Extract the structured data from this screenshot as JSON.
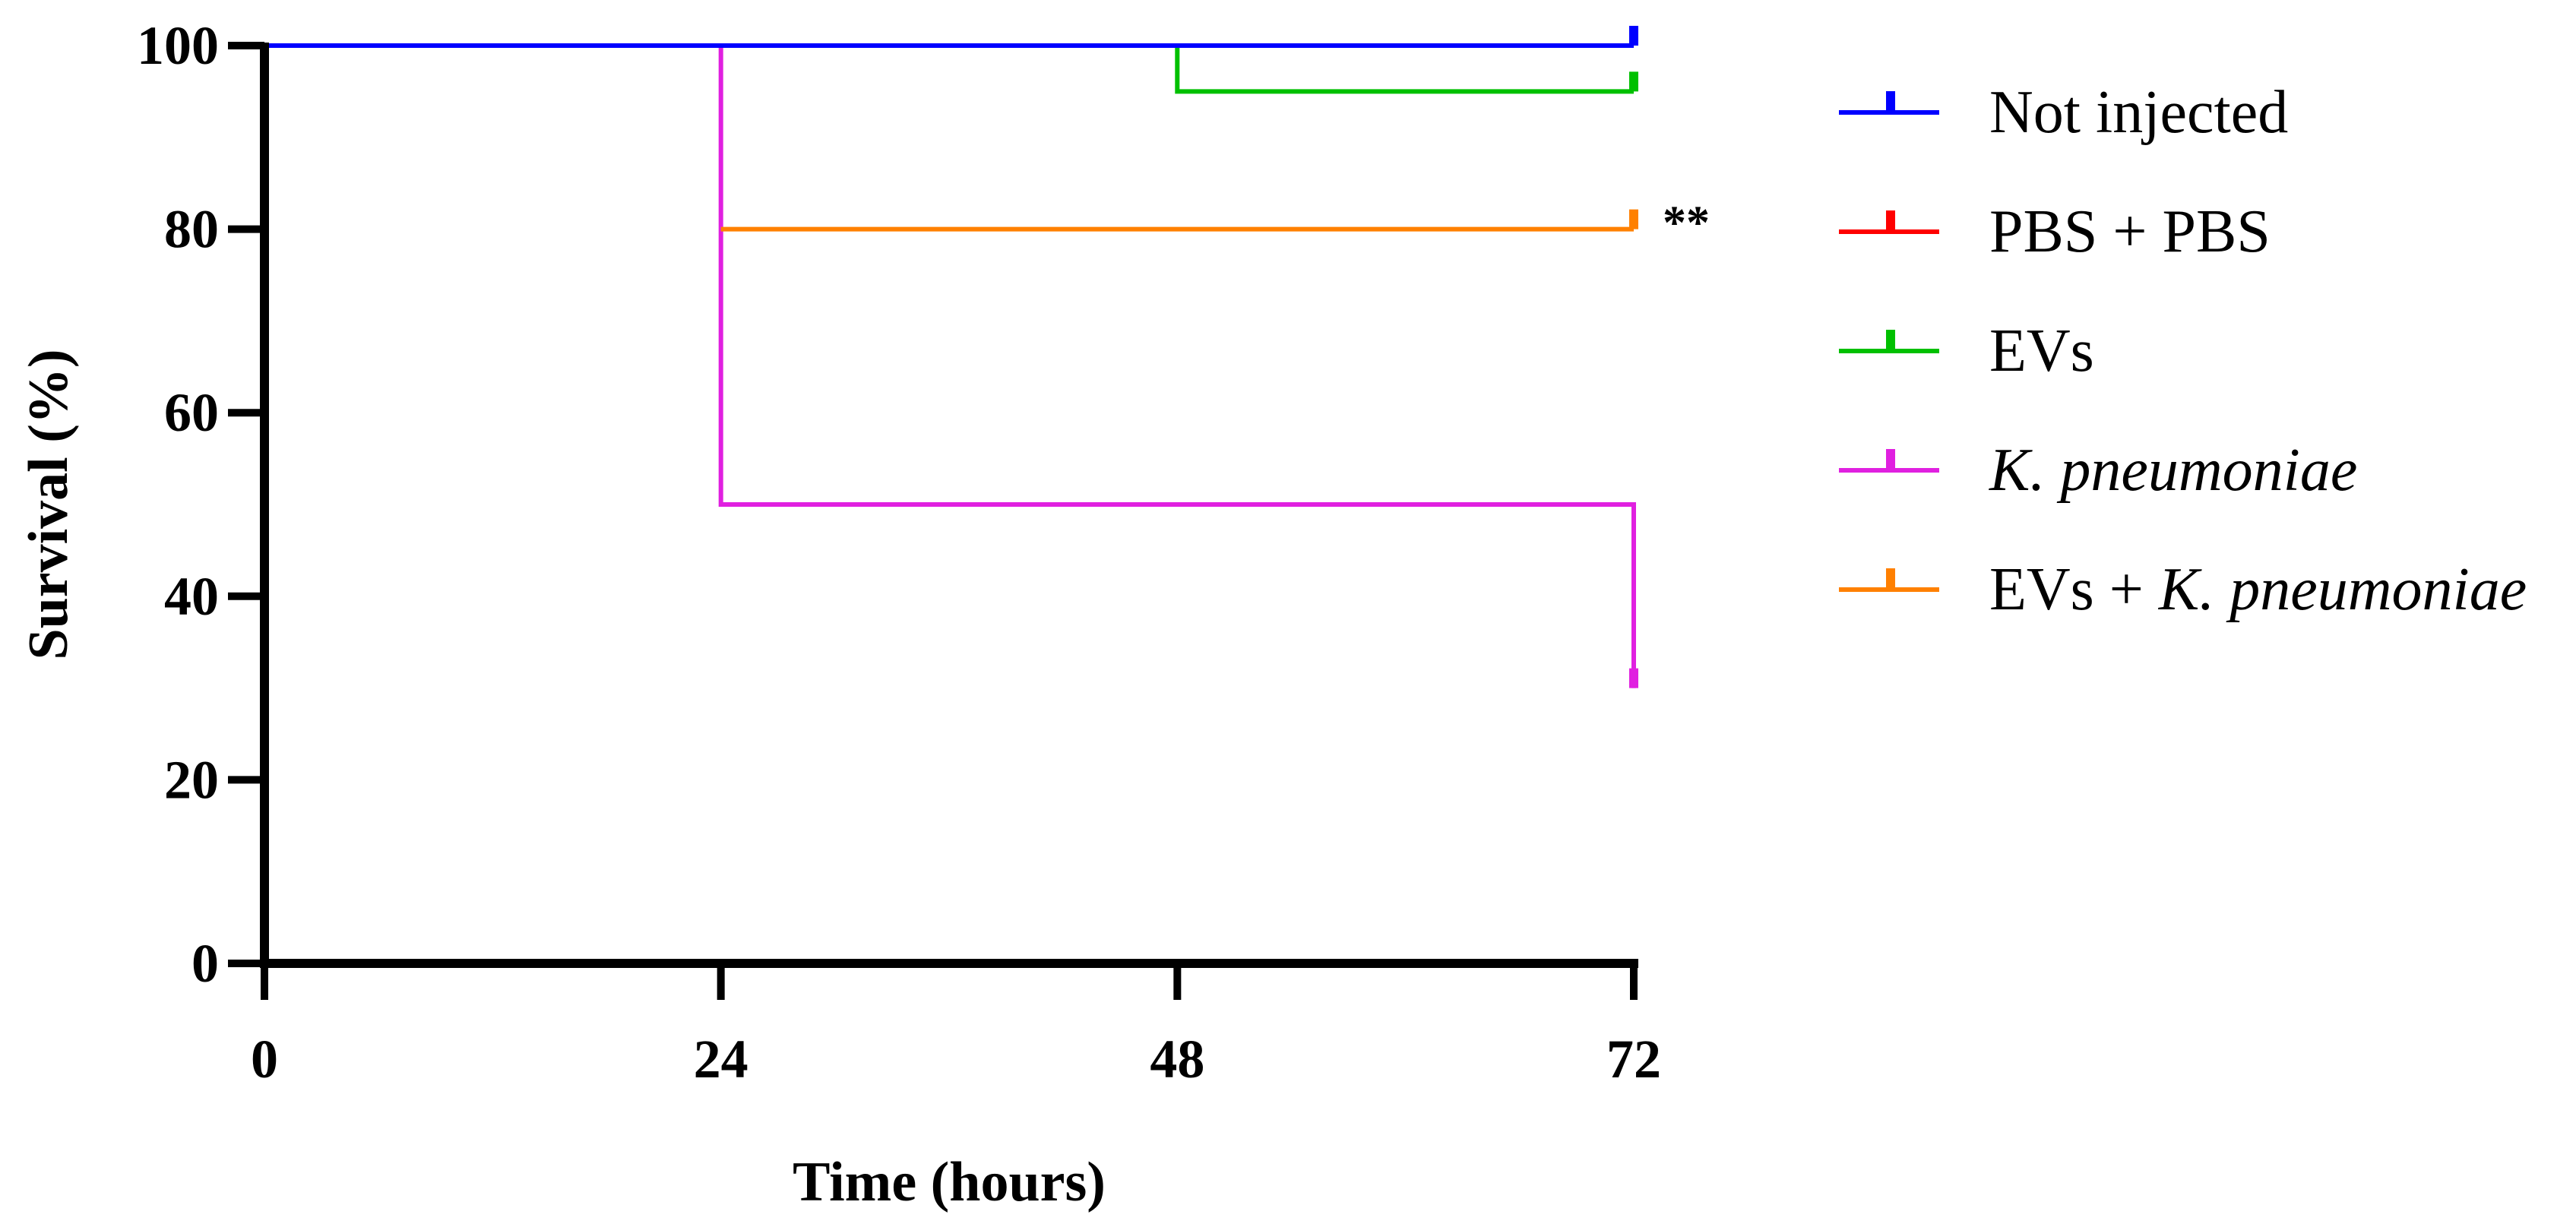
{
  "chart_data": {
    "type": "line",
    "title": "",
    "xlabel": "Time (hours)",
    "ylabel": "Survival (%)",
    "xlim": [
      0,
      72
    ],
    "ylim": [
      0,
      100
    ],
    "xticks": [
      0,
      24,
      48,
      72
    ],
    "yticks": [
      0,
      20,
      40,
      60,
      80,
      100
    ],
    "grid": false,
    "legend_position": "right",
    "series": [
      {
        "name": "Not injected",
        "italic_part": "",
        "color": "#0000ff",
        "x": [
          0,
          72
        ],
        "y": [
          100,
          100
        ],
        "censor_y": 100
      },
      {
        "name": "PBS + PBS",
        "italic_part": "",
        "color": "#ff0000",
        "x": [
          0,
          72
        ],
        "y": [
          100,
          100
        ],
        "censor_y": 100
      },
      {
        "name": "EVs",
        "italic_part": "",
        "color": "#00c000",
        "x": [
          0,
          48,
          48,
          72
        ],
        "y": [
          100,
          100,
          95,
          95
        ],
        "censor_y": 95
      },
      {
        "name": "",
        "italic_part": "K. pneumoniae",
        "color": "#e020e0",
        "x": [
          0,
          24,
          24,
          72,
          72
        ],
        "y": [
          100,
          100,
          50,
          50,
          30
        ],
        "censor_y": 30
      },
      {
        "name": "EVs + ",
        "italic_part": "K. pneumoniae",
        "color": "#ff8000",
        "x": [
          24,
          72
        ],
        "y": [
          80,
          80
        ],
        "censor_y": 80
      }
    ],
    "draw_order": [
      3,
      4,
      2,
      1,
      0
    ],
    "annotations": [
      {
        "text": "**",
        "x": 72,
        "y": 80
      }
    ]
  }
}
